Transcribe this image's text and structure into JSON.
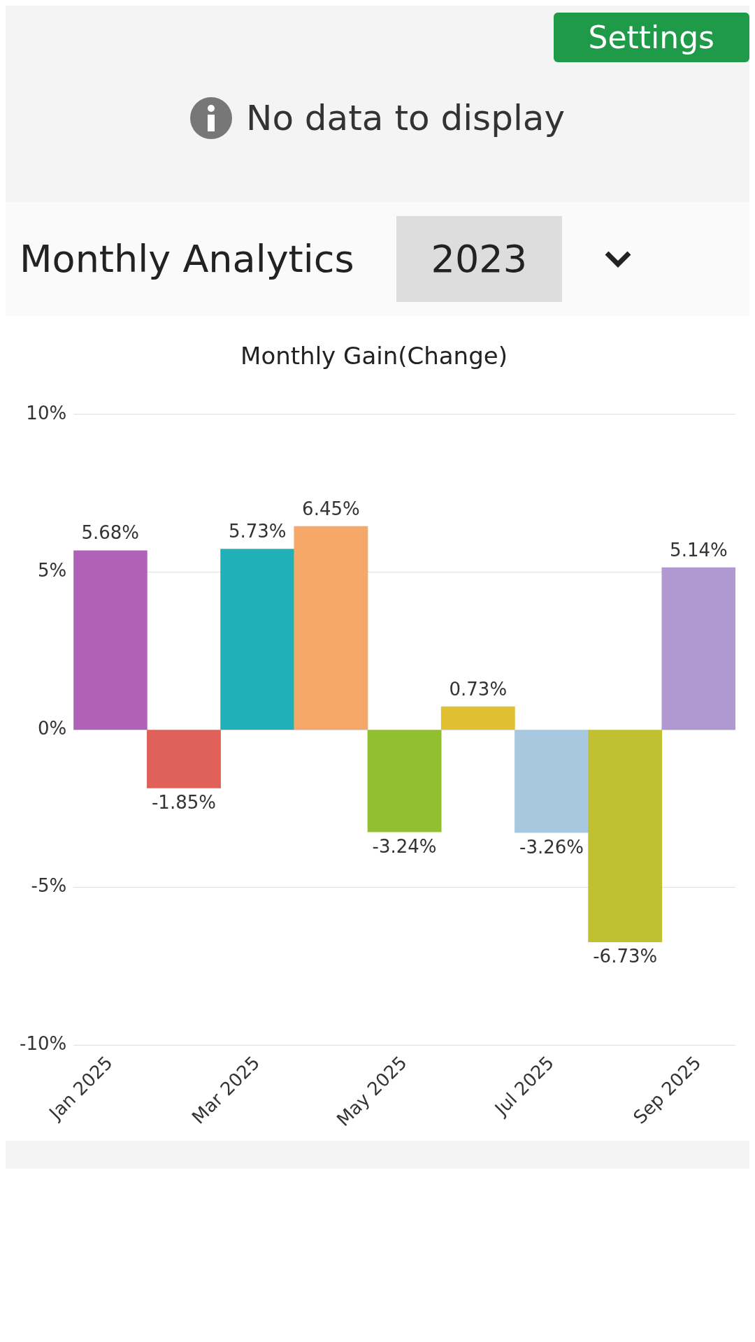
{
  "chart_data": {
    "type": "bar",
    "title": "Monthly Gain(Change)",
    "annotations": [
      "No data to display",
      "Monthly Analytics",
      "2023",
      "Settings"
    ],
    "categories": [
      "Jan 2025",
      null,
      "Mar 2025",
      null,
      "May 2025",
      null,
      "Jul 2025",
      null,
      "Sep 2025"
    ],
    "values": [
      5.68,
      -1.85,
      5.73,
      6.45,
      -3.24,
      0.73,
      -3.26,
      -6.73,
      5.14
    ],
    "value_labels": [
      "5.68%",
      "-1.85%",
      "5.73%",
      "6.45%",
      "-3.24%",
      "0.73%",
      "-3.26%",
      "-6.73%",
      "5.14%"
    ],
    "colors": [
      "#b062b8",
      "#e0605a",
      "#20b0b8",
      "#f5a868",
      "#90c030",
      "#e0c030",
      "#a8c8e0",
      "#c0c030",
      "#b098d0"
    ],
    "ylim": [
      -10,
      10
    ],
    "yticks": [
      {
        "value": -10,
        "label": "-10%"
      },
      {
        "value": -5,
        "label": "-5%"
      },
      {
        "value": 0,
        "label": "0%"
      },
      {
        "value": 5,
        "label": "5%"
      },
      {
        "value": 10,
        "label": "10%"
      }
    ],
    "grid": "y",
    "legend": false
  }
}
